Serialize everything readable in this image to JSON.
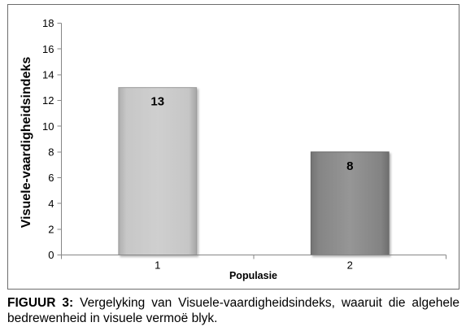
{
  "chart_data": {
    "type": "bar",
    "categories": [
      "1",
      "2"
    ],
    "values": [
      13,
      8
    ],
    "data_labels": true,
    "xlabel": "Populasie",
    "ylabel": "Visuele-vaardigheidsindeks",
    "ylim": [
      0,
      18
    ],
    "yticks": [
      0,
      2,
      4,
      6,
      8,
      10,
      12,
      14,
      16,
      18
    ],
    "grid": false,
    "bar_colors": [
      "#c6c6c6",
      "#838383"
    ],
    "axis_color": "#868686"
  },
  "caption": {
    "label": "FIGUUR 3:",
    "text": "Vergelyking van Visuele-vaardigheidsindeks, waaruit die algehele bedrewenheid in visuele vermoë blyk."
  }
}
